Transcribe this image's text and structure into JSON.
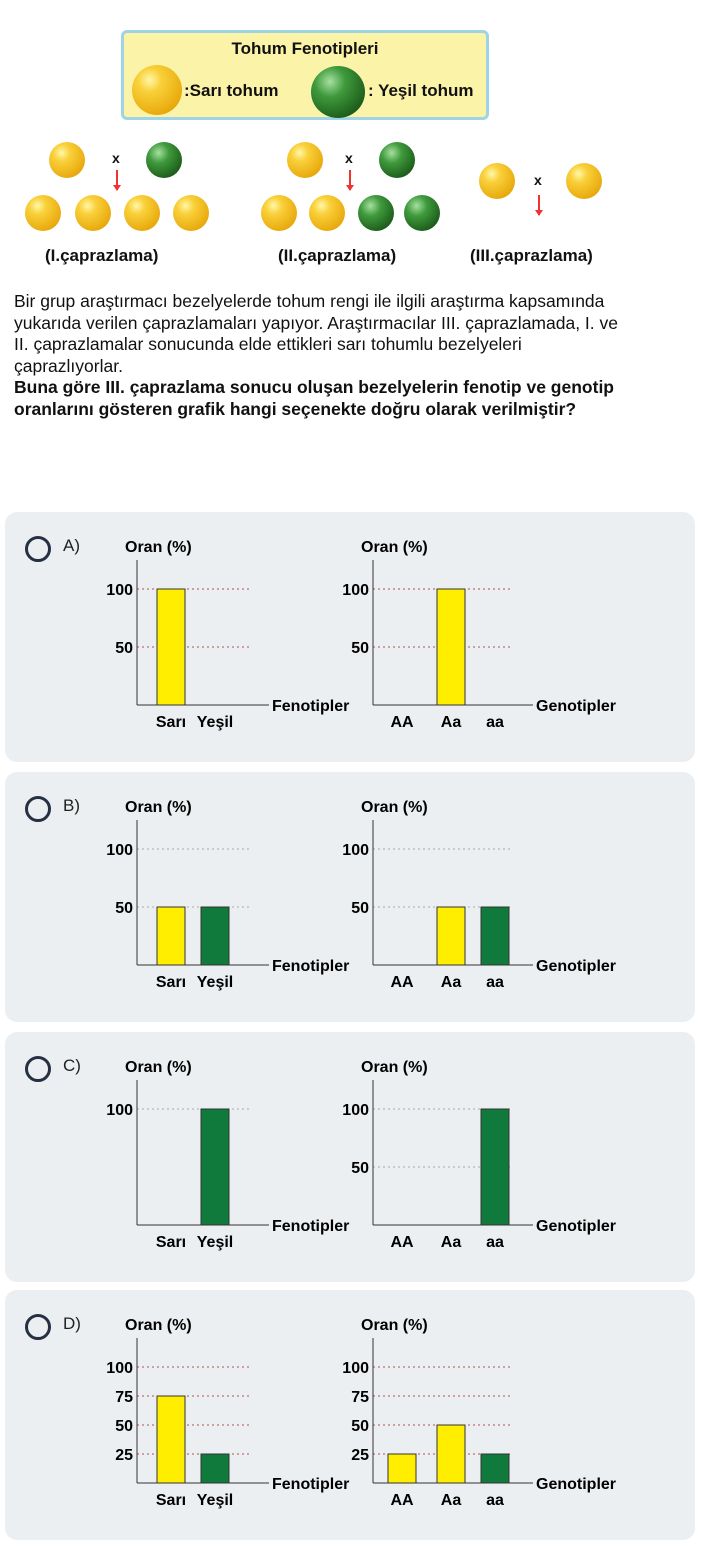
{
  "legend": {
    "title": "Tohum Fenotipleri",
    "yellow": ":Sarı tohum",
    "green": ": Yeşil tohum"
  },
  "crosses": [
    {
      "label": "(I.çaprazlama)",
      "x": "x"
    },
    {
      "label": "(II.çaprazlama)",
      "x": "x"
    },
    {
      "label": "(III.çaprazlama)",
      "x": "x"
    }
  ],
  "question": {
    "text": "Bir grup araştırmacı bezelyelerde tohum rengi ile ilgili araştırma kapsamında yukarıda verilen çaprazlamaları yapıyor. Araştırmacılar III. çaprazlamada, I. ve II. çaprazlamalar sonucunda elde ettikleri sarı tohumlu bezelyeleri çaprazlıyorlar.",
    "bold": "Buna göre III. çaprazlama sonucu oluşan bezelyelerin fenotip ve genotip oranlarını gösteren grafik hangi seçenekte doğru olarak verilmiştir?"
  },
  "colors": {
    "yellow": "#ffee00",
    "green": "#0f7a3c"
  },
  "chart_data": [
    {
      "option": "A)",
      "type": "bar",
      "ylabel": "Oran (%)",
      "xlabel": "Fenotipler",
      "categories": [
        "Sarı",
        "Yeşil"
      ],
      "values": [
        100,
        0
      ],
      "colors": [
        "yellow",
        "green"
      ],
      "yticks": [
        100,
        50
      ]
    },
    {
      "option": "A)",
      "type": "bar",
      "ylabel": "Oran (%)",
      "xlabel": "Genotipler",
      "categories": [
        "AA",
        "Aa",
        "aa"
      ],
      "values": [
        0,
        100,
        0
      ],
      "colors": [
        "yellow",
        "yellow",
        "green"
      ],
      "yticks": [
        100,
        50
      ]
    },
    {
      "option": "B)",
      "type": "bar",
      "ylabel": "Oran (%)",
      "xlabel": "Fenotipler",
      "categories": [
        "Sarı",
        "Yeşil"
      ],
      "values": [
        50,
        50
      ],
      "colors": [
        "yellow",
        "green"
      ],
      "yticks": [
        100,
        50
      ]
    },
    {
      "option": "B)",
      "type": "bar",
      "ylabel": "Oran (%)",
      "xlabel": "Genotipler",
      "categories": [
        "AA",
        "Aa",
        "aa"
      ],
      "values": [
        0,
        50,
        50
      ],
      "colors": [
        "yellow",
        "yellow",
        "green"
      ],
      "yticks": [
        100,
        50
      ]
    },
    {
      "option": "C)",
      "type": "bar",
      "ylabel": "Oran (%)",
      "xlabel": "Fenotipler",
      "categories": [
        "Sarı",
        "Yeşil"
      ],
      "values": [
        0,
        100
      ],
      "colors": [
        "yellow",
        "green"
      ],
      "yticks": [
        100
      ]
    },
    {
      "option": "C)",
      "type": "bar",
      "ylabel": "Oran (%)",
      "xlabel": "Genotipler",
      "categories": [
        "AA",
        "Aa",
        "aa"
      ],
      "values": [
        0,
        0,
        100
      ],
      "colors": [
        "yellow",
        "yellow",
        "green"
      ],
      "yticks": [
        100,
        50
      ]
    },
    {
      "option": "D)",
      "type": "bar",
      "ylabel": "Oran (%)",
      "xlabel": "Fenotipler",
      "categories": [
        "Sarı",
        "Yeşil"
      ],
      "values": [
        75,
        25
      ],
      "colors": [
        "yellow",
        "green"
      ],
      "yticks": [
        100,
        75,
        50,
        25
      ]
    },
    {
      "option": "D)",
      "type": "bar",
      "ylabel": "Oran (%)",
      "xlabel": "Genotipler",
      "categories": [
        "AA",
        "Aa",
        "aa"
      ],
      "values": [
        25,
        50,
        25
      ],
      "colors": [
        "yellow",
        "yellow",
        "green"
      ],
      "yticks": [
        100,
        75,
        50,
        25
      ]
    }
  ]
}
